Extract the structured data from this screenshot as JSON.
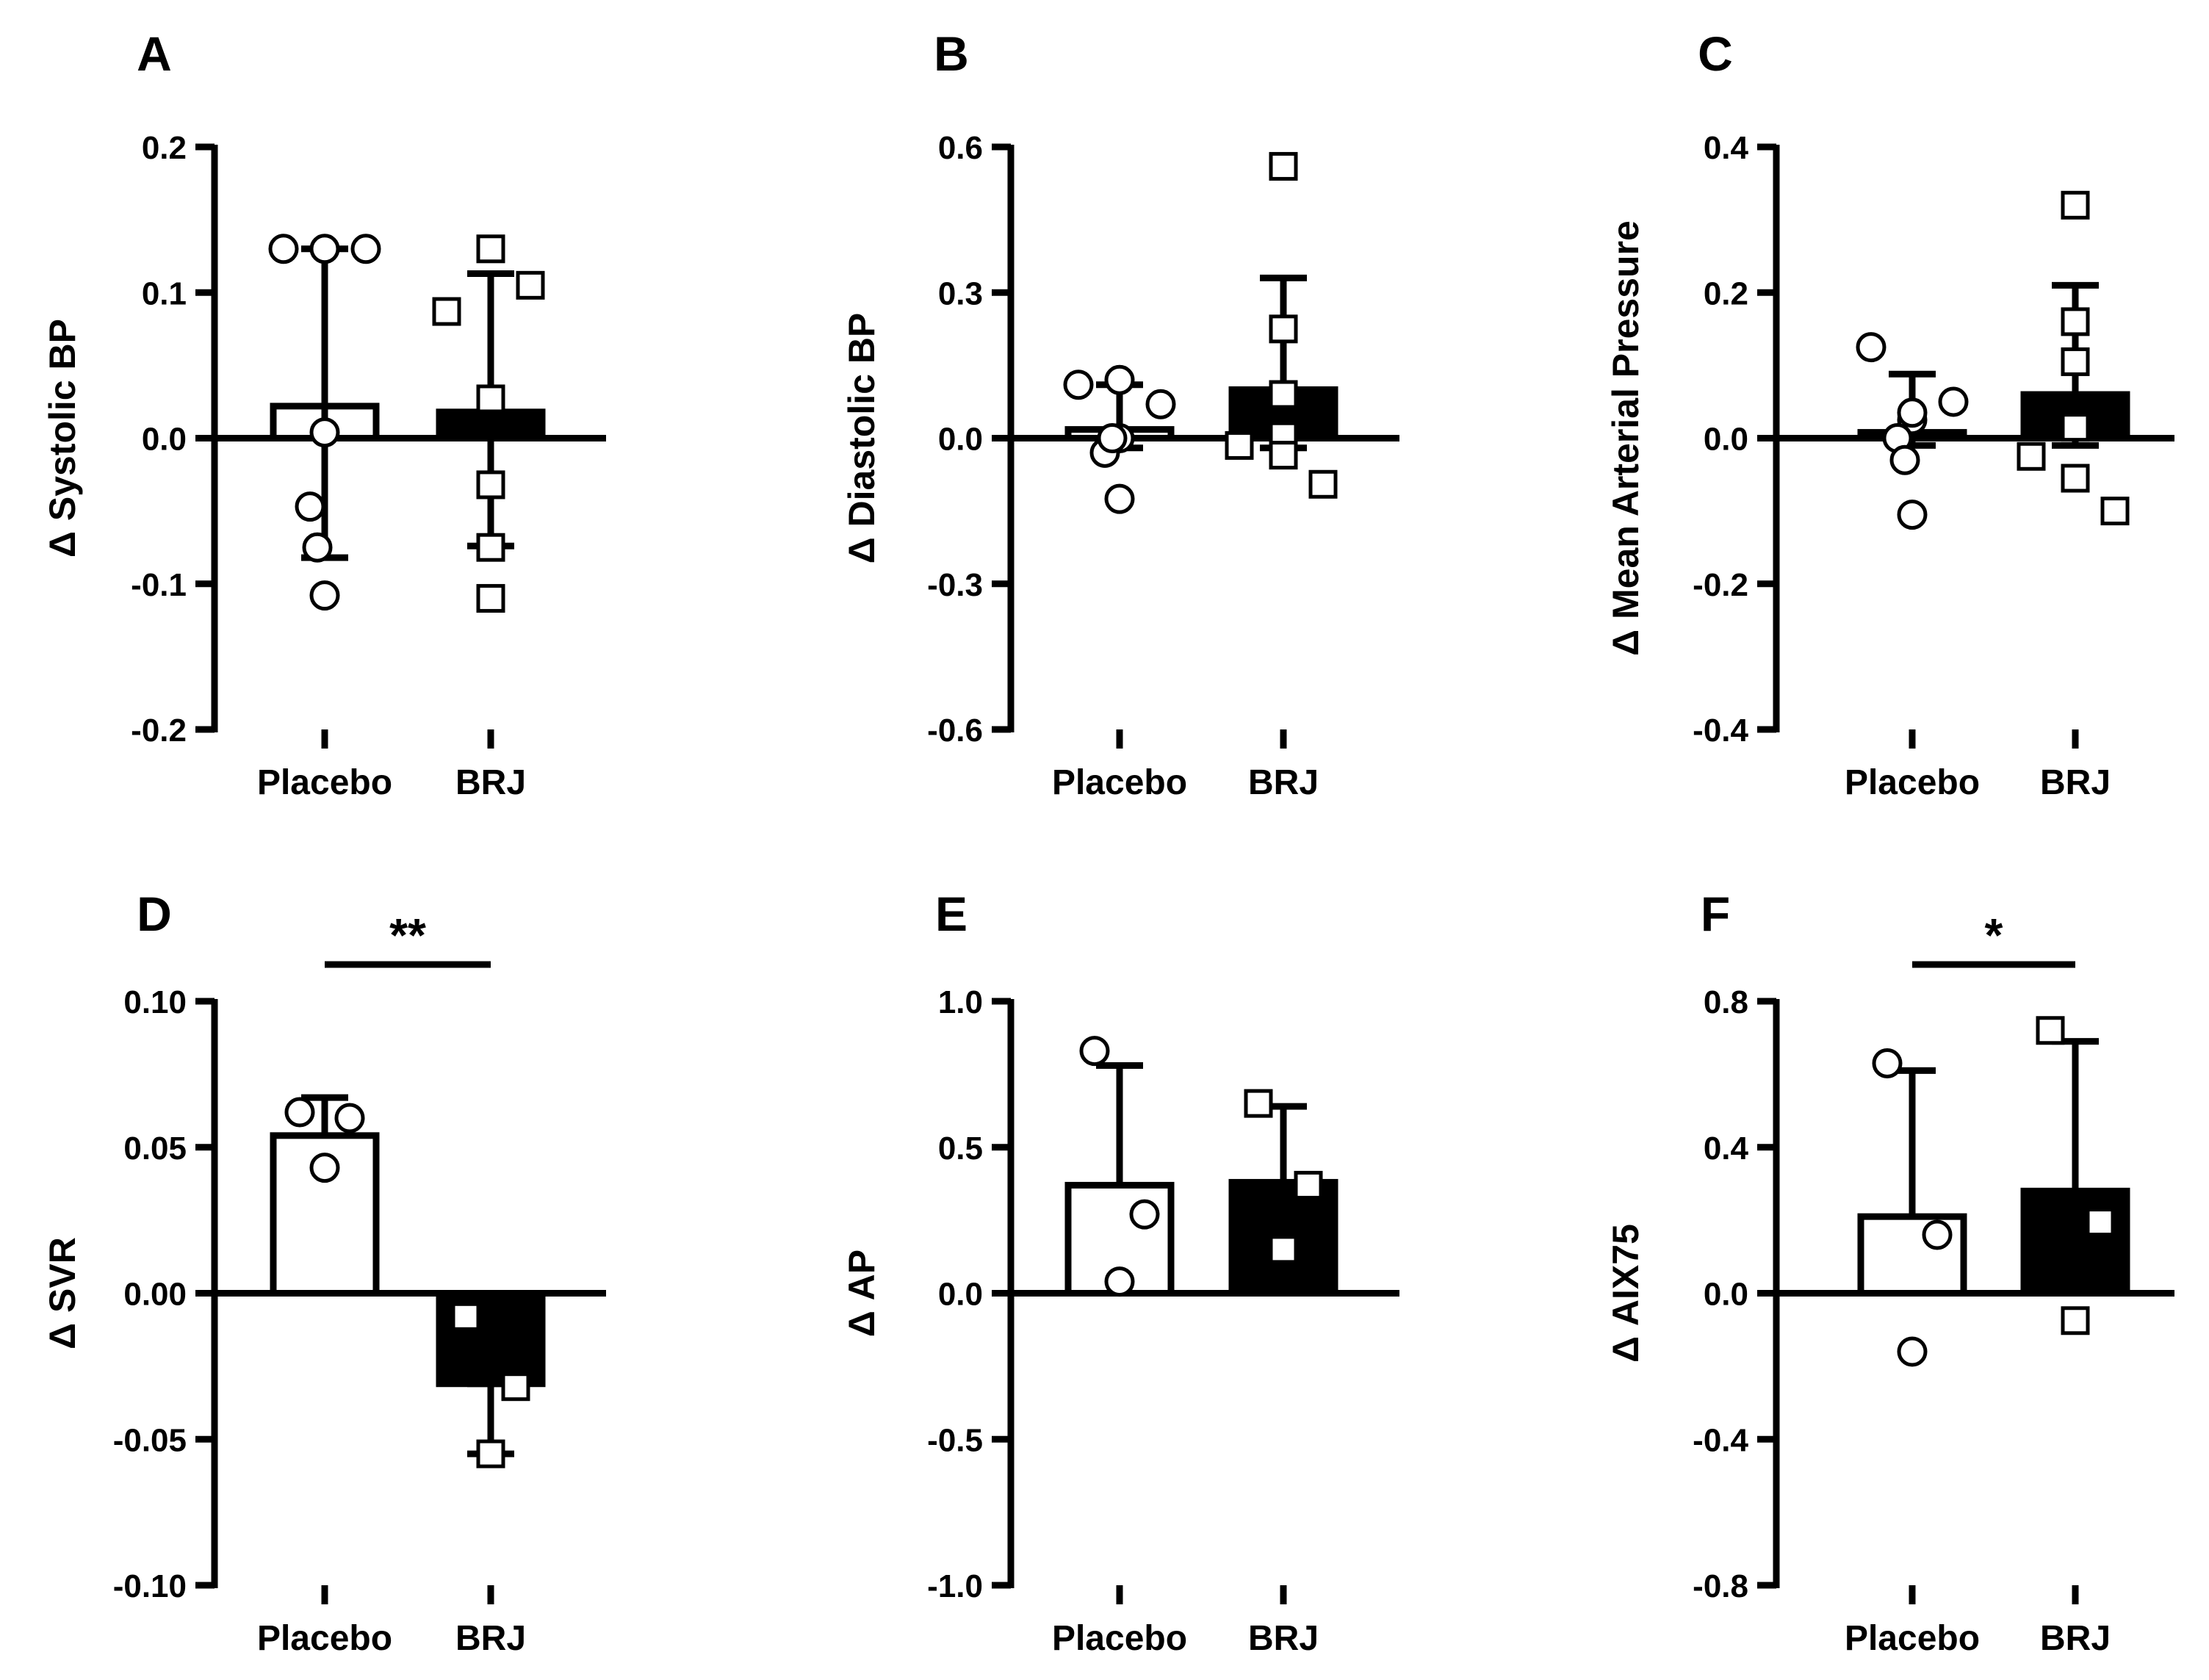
{
  "figure": {
    "panels": [
      "A",
      "B",
      "C",
      "D",
      "E",
      "F"
    ]
  },
  "chart_data": [
    {
      "type": "bar",
      "panel_label": "A",
      "ylabel": "Δ Systolic BP",
      "categories": [
        "Placebo",
        "BRJ"
      ],
      "ylim": [
        -0.2,
        0.2
      ],
      "yticks": [
        "0.2",
        "0.1",
        "0.0",
        "-0.1",
        "-0.2"
      ],
      "ytick_values": [
        0.2,
        0.1,
        0.0,
        -0.1,
        -0.2
      ],
      "bar_colors": [
        "#ffffff",
        "#000000"
      ],
      "values": [
        0.022,
        0.018
      ],
      "error_low": [
        -0.082,
        -0.074
      ],
      "error_high": [
        0.13,
        0.113
      ],
      "points": [
        [
          0.13,
          0.13,
          0.13,
          0.004,
          -0.047,
          -0.075,
          -0.108
        ],
        [
          0.13,
          0.087,
          0.105,
          0.027,
          -0.032,
          -0.075,
          -0.11
        ]
      ],
      "point_markers": [
        "circle",
        "square"
      ],
      "significance": null
    },
    {
      "type": "bar",
      "panel_label": "B",
      "ylabel": "Δ Diastolic BP",
      "categories": [
        "Placebo",
        "BRJ"
      ],
      "ylim": [
        -0.6,
        0.6
      ],
      "yticks": [
        "0.6",
        "0.3",
        "0.0",
        "-0.3",
        "-0.6"
      ],
      "ytick_values": [
        0.6,
        0.3,
        0.0,
        -0.3,
        -0.6
      ],
      "bar_colors": [
        "#ffffff",
        "#000000"
      ],
      "values": [
        0.018,
        0.1
      ],
      "error_low": [
        -0.02,
        -0.02
      ],
      "error_high": [
        0.11,
        0.33
      ],
      "points": [
        [
          0.11,
          0.12,
          0.07,
          0.0,
          -0.03,
          0.0,
          -0.125
        ],
        [
          0.56,
          0.225,
          0.09,
          0.005,
          -0.015,
          -0.035,
          -0.095
        ]
      ],
      "point_markers": [
        "circle",
        "square"
      ],
      "significance": null
    },
    {
      "type": "bar",
      "panel_label": "C",
      "ylabel": "Δ Mean Arterial Pressure",
      "categories": [
        "Placebo",
        "BRJ"
      ],
      "ylim": [
        -0.4,
        0.4
      ],
      "yticks": [
        "0.4",
        "0.2",
        "0.0",
        "-0.2",
        "-0.4"
      ],
      "ytick_values": [
        0.4,
        0.2,
        0.0,
        -0.2,
        -0.4
      ],
      "bar_colors": [
        "#ffffff",
        "#000000"
      ],
      "values": [
        0.008,
        0.06
      ],
      "error_low": [
        -0.01,
        -0.01
      ],
      "error_high": [
        0.088,
        0.21
      ],
      "points": [
        [
          0.125,
          0.025,
          0.05,
          0.035,
          0.0,
          -0.03,
          -0.105
        ],
        [
          0.32,
          0.16,
          0.105,
          0.015,
          -0.025,
          -0.055,
          -0.1
        ]
      ],
      "point_markers": [
        "circle",
        "square"
      ],
      "significance": null
    },
    {
      "type": "bar",
      "panel_label": "D",
      "ylabel": "Δ SVR",
      "categories": [
        "Placebo",
        "BRJ"
      ],
      "ylim": [
        -0.1,
        0.1
      ],
      "yticks": [
        "0.10",
        "0.05",
        "0.00",
        "-0.05",
        "-0.10"
      ],
      "ytick_values": [
        0.1,
        0.05,
        0.0,
        -0.05,
        -0.1
      ],
      "bar_colors": [
        "#ffffff",
        "#000000"
      ],
      "values": [
        0.054,
        -0.031
      ],
      "error_low": [
        0.054,
        -0.055
      ],
      "error_high": [
        0.067,
        -0.031
      ],
      "points": [
        [
          0.062,
          0.06,
          0.043
        ],
        [
          -0.008,
          -0.032,
          -0.055
        ]
      ],
      "point_markers": [
        "circle",
        "square"
      ],
      "significance": "**"
    },
    {
      "type": "bar",
      "panel_label": "E",
      "ylabel": "Δ AP",
      "categories": [
        "Placebo",
        "BRJ"
      ],
      "ylim": [
        -1.0,
        1.0
      ],
      "yticks": [
        "1.0",
        "0.5",
        "0.0",
        "-0.5",
        "-1.0"
      ],
      "ytick_values": [
        1.0,
        0.5,
        0.0,
        -0.5,
        -1.0
      ],
      "bar_colors": [
        "#ffffff",
        "#000000"
      ],
      "values": [
        0.37,
        0.38
      ],
      "error_low": [
        0.37,
        0.38
      ],
      "error_high": [
        0.78,
        0.64
      ],
      "points": [
        [
          0.83,
          0.27,
          0.04
        ],
        [
          0.65,
          0.37,
          0.15
        ]
      ],
      "point_markers": [
        "circle",
        "square"
      ],
      "significance": null
    },
    {
      "type": "bar",
      "panel_label": "F",
      "ylabel": "Δ AIX75",
      "categories": [
        "Placebo",
        "BRJ"
      ],
      "ylim": [
        -0.8,
        0.8
      ],
      "yticks": [
        "0.8",
        "0.4",
        "0.0",
        "-0.4",
        "-0.8"
      ],
      "ytick_values": [
        0.8,
        0.4,
        0.0,
        -0.4,
        -0.8
      ],
      "bar_colors": [
        "#ffffff",
        "#000000"
      ],
      "values": [
        0.21,
        0.28
      ],
      "error_low": [
        0.21,
        0.28
      ],
      "error_high": [
        0.61,
        0.69
      ],
      "points": [
        [
          0.63,
          0.16,
          -0.16
        ],
        [
          0.72,
          0.195,
          -0.075
        ]
      ],
      "point_markers": [
        "circle",
        "square"
      ],
      "significance": "*"
    }
  ]
}
